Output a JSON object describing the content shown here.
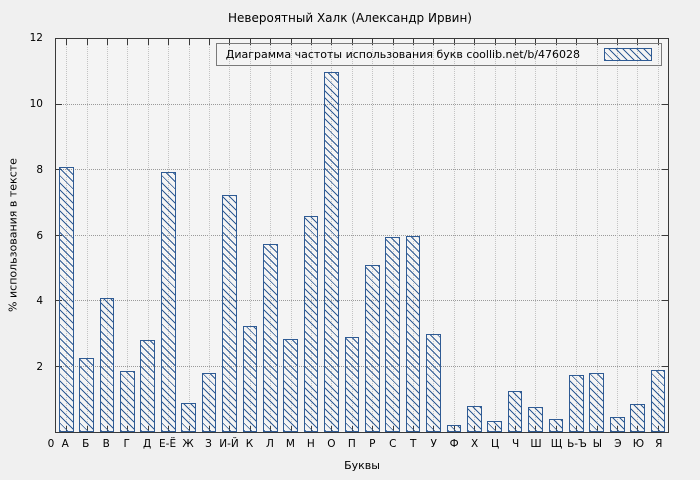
{
  "page": {
    "title": "Невероятный Халк (Александр Ирвин)"
  },
  "chart_data": {
    "type": "bar",
    "title": "Невероятный Халк (Александр Ирвин)",
    "legend": "Диаграмма частоты использования букв  coollib.net/b/476028",
    "xlabel": "Буквы",
    "ylabel": "% использования в тексте",
    "x_origin_label": "0",
    "ylim": [
      0,
      12
    ],
    "yticks": [
      0,
      2,
      4,
      6,
      8,
      10,
      12
    ],
    "grid": true,
    "legend_position": "top-right",
    "bar_color": "#2f5b94",
    "categories": [
      "А",
      "Б",
      "В",
      "Г",
      "Д",
      "Е-Ё",
      "Ж",
      "З",
      "И-Й",
      "К",
      "Л",
      "М",
      "Н",
      "О",
      "П",
      "Р",
      "С",
      "Т",
      "У",
      "Ф",
      "Х",
      "Ц",
      "Ч",
      "Ш",
      "Щ",
      "Ь-Ъ",
      "Ы",
      "Э",
      "Ю",
      "Я"
    ],
    "values": [
      8.1,
      2.25,
      4.1,
      1.85,
      2.8,
      7.95,
      0.9,
      1.8,
      7.25,
      3.25,
      5.75,
      2.85,
      6.6,
      11.0,
      2.9,
      5.1,
      5.95,
      6.0,
      3.0,
      0.2,
      0.8,
      0.35,
      1.25,
      0.75,
      0.4,
      1.75,
      1.8,
      0.45,
      0.85,
      1.9
    ]
  }
}
